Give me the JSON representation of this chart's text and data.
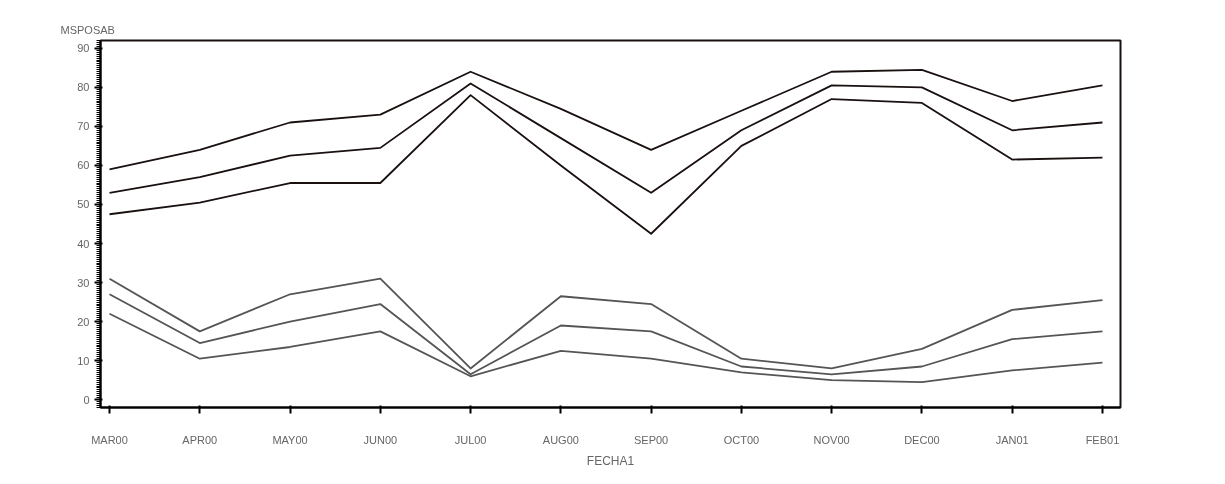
{
  "chart_data": {
    "type": "line",
    "ylabel": "MSPOSAB",
    "xlabel": "FECHA1",
    "categories": [
      "MAR00",
      "APR00",
      "MAY00",
      "JUN00",
      "JUL00",
      "AUG00",
      "SEP00",
      "OCT00",
      "NOV00",
      "DEC00",
      "JAN01",
      "FEB01"
    ],
    "ylim": [
      -2,
      92
    ],
    "yticks": [
      0,
      10,
      20,
      30,
      40,
      50,
      60,
      70,
      80,
      90
    ],
    "grid": false,
    "marker": "none",
    "line_style": "solid",
    "series": [
      {
        "color": "#1a1010",
        "values": [
          59,
          64,
          71,
          73,
          84,
          74.5,
          64,
          74,
          84,
          84.5,
          76.5,
          80.5
        ]
      },
      {
        "color": "#1a1010",
        "values": [
          53,
          57,
          62.5,
          64.5,
          81,
          67,
          53,
          69,
          80.5,
          80,
          69,
          71
        ]
      },
      {
        "color": "#1a1010",
        "values": [
          47.5,
          50.5,
          55.5,
          55.5,
          78,
          60,
          42.5,
          65,
          77,
          76,
          61.5,
          62
        ]
      },
      {
        "color": "#555555",
        "values": [
          31,
          17.5,
          27,
          31,
          8,
          26.5,
          24.5,
          10.5,
          8,
          13,
          23,
          25.5
        ]
      },
      {
        "color": "#555555",
        "values": [
          27,
          14.5,
          20,
          24.5,
          6.5,
          19,
          17.5,
          8.5,
          6.5,
          8.5,
          15.5,
          17.5
        ]
      },
      {
        "color": "#555555",
        "values": [
          22,
          10.5,
          13.5,
          17.5,
          6,
          12.5,
          10.5,
          7,
          5,
          4.5,
          7.5,
          9.5
        ]
      }
    ]
  }
}
